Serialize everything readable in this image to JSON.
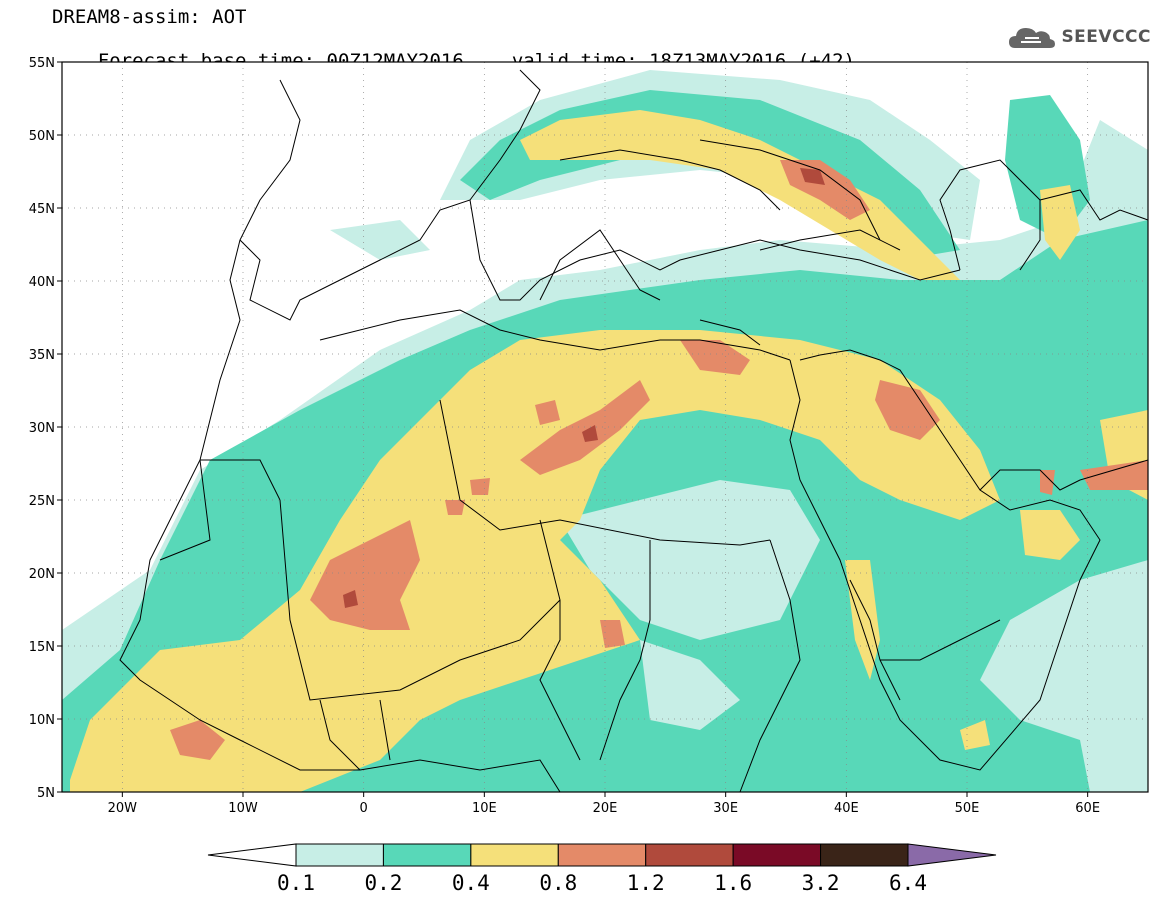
{
  "header": {
    "title": "DREAM8-assim: AOT",
    "base_time": "Forecast base time: 00Z12MAY2016",
    "valid_time": "valid time: 18Z13MAY2016 (+42)"
  },
  "logo": {
    "text": "SEEVCCC",
    "icon": "cloud-icon"
  },
  "map": {
    "lon_range": [
      -25,
      65
    ],
    "lat_range": [
      5,
      55
    ],
    "lat_ticks": [
      {
        "v": 55,
        "label": "55N"
      },
      {
        "v": 50,
        "label": "50N"
      },
      {
        "v": 45,
        "label": "45N"
      },
      {
        "v": 40,
        "label": "40N"
      },
      {
        "v": 35,
        "label": "35N"
      },
      {
        "v": 30,
        "label": "30N"
      },
      {
        "v": 25,
        "label": "25N"
      },
      {
        "v": 20,
        "label": "20N"
      },
      {
        "v": 15,
        "label": "15N"
      },
      {
        "v": 10,
        "label": "10N"
      },
      {
        "v": 5,
        "label": "5N"
      }
    ],
    "lon_ticks": [
      {
        "v": -20,
        "label": "20W"
      },
      {
        "v": -10,
        "label": "10W"
      },
      {
        "v": 0,
        "label": "0"
      },
      {
        "v": 10,
        "label": "10E"
      },
      {
        "v": 20,
        "label": "20E"
      },
      {
        "v": 30,
        "label": "30E"
      },
      {
        "v": 40,
        "label": "40E"
      },
      {
        "v": 50,
        "label": "50E"
      },
      {
        "v": 60,
        "label": "60E"
      }
    ]
  },
  "colorbar": {
    "labels": [
      "0.1",
      "0.2",
      "0.4",
      "0.8",
      "1.2",
      "1.6",
      "3.2",
      "6.4"
    ],
    "colors": [
      "#ffffff",
      "#c7eee6",
      "#58d8b8",
      "#f5e07a",
      "#e48a68",
      "#b04a3c",
      "#7a0a26",
      "#3a2418",
      "#8a6aa8"
    ]
  }
}
